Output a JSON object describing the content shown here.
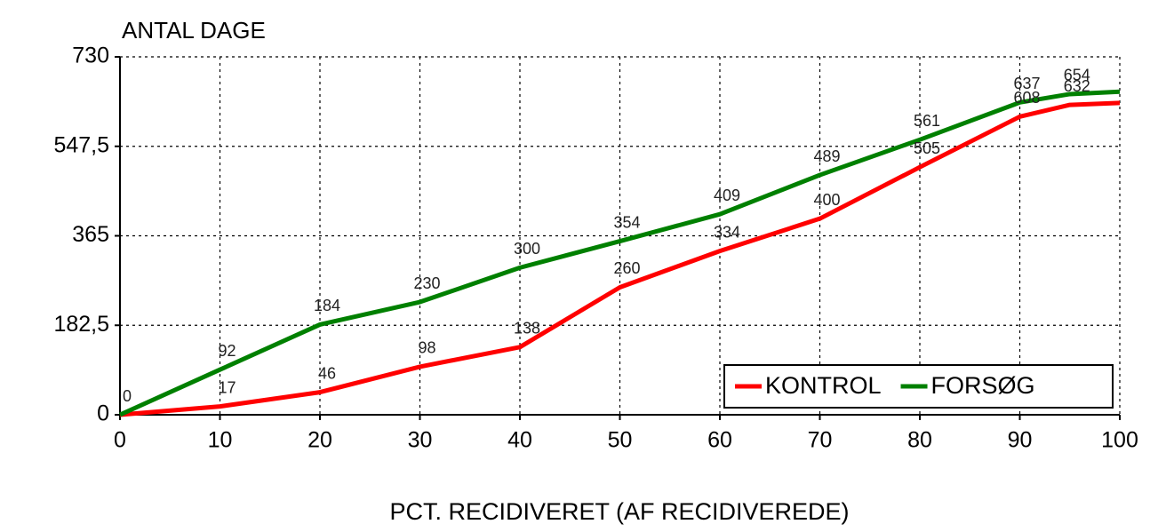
{
  "chart_data": {
    "type": "line",
    "title": "ANTAL DAGE",
    "x_label": "PCT. RECIDIVERET (AF RECIDIVEREDE)",
    "x": [
      0,
      10,
      20,
      30,
      40,
      50,
      60,
      70,
      80,
      90,
      95,
      100
    ],
    "series": [
      {
        "name": "KONTROL",
        "color": "#ff0000",
        "values": [
          0,
          17,
          46,
          98,
          138,
          260,
          334,
          400,
          505,
          608,
          632,
          636
        ],
        "value_labels": [
          null,
          "17",
          "46",
          "98",
          "138",
          "260",
          "334",
          "400",
          "505",
          "608",
          "632",
          null
        ]
      },
      {
        "name": "FORSØG",
        "color": "#008000",
        "values": [
          0,
          92,
          184,
          230,
          300,
          354,
          409,
          489,
          561,
          637,
          654,
          659
        ],
        "value_labels": [
          "0",
          "92",
          "184",
          "230",
          "300",
          "354",
          "409",
          "489",
          "561",
          "637",
          "654",
          null
        ]
      }
    ],
    "xlim": [
      0,
      100
    ],
    "xticks": [
      0,
      10,
      20,
      30,
      40,
      50,
      60,
      70,
      80,
      90,
      100
    ],
    "ylim": [
      0,
      730
    ],
    "yticks": [
      0,
      {
        "value": 182.5,
        "label": "182,5"
      },
      365,
      {
        "value": 547.5,
        "label": "547,5"
      },
      730
    ],
    "grid": true,
    "legend": "lower right"
  }
}
